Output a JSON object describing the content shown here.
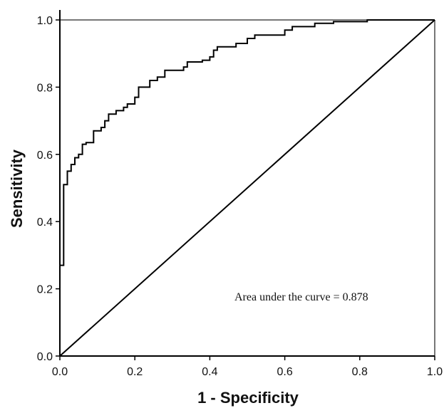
{
  "chart_data": {
    "type": "line",
    "title": "",
    "xlabel": "1 - Specificity",
    "ylabel": "Sensitivity",
    "xlim": [
      0,
      1
    ],
    "ylim": [
      0,
      1
    ],
    "x_ticks": [
      "0.0",
      "0.2",
      "0.4",
      "0.6",
      "0.8",
      "1.0"
    ],
    "y_ticks": [
      "0.0",
      "0.2",
      "0.4",
      "0.6",
      "0.8",
      "1.0"
    ],
    "grid": false,
    "legend": "none",
    "annotation": "Area under the curve = 0.878",
    "series": [
      {
        "style": "step",
        "color": "#000000",
        "points": [
          [
            0.0,
            0.0
          ],
          [
            0.0,
            0.27
          ],
          [
            0.01,
            0.27
          ],
          [
            0.01,
            0.51
          ],
          [
            0.02,
            0.51
          ],
          [
            0.02,
            0.55
          ],
          [
            0.03,
            0.55
          ],
          [
            0.03,
            0.57
          ],
          [
            0.04,
            0.57
          ],
          [
            0.04,
            0.59
          ],
          [
            0.05,
            0.59
          ],
          [
            0.05,
            0.6
          ],
          [
            0.06,
            0.6
          ],
          [
            0.06,
            0.63
          ],
          [
            0.07,
            0.63
          ],
          [
            0.07,
            0.635
          ],
          [
            0.09,
            0.635
          ],
          [
            0.09,
            0.67
          ],
          [
            0.11,
            0.67
          ],
          [
            0.11,
            0.68
          ],
          [
            0.12,
            0.68
          ],
          [
            0.12,
            0.7
          ],
          [
            0.13,
            0.7
          ],
          [
            0.13,
            0.72
          ],
          [
            0.15,
            0.72
          ],
          [
            0.15,
            0.73
          ],
          [
            0.17,
            0.73
          ],
          [
            0.17,
            0.74
          ],
          [
            0.18,
            0.74
          ],
          [
            0.18,
            0.75
          ],
          [
            0.2,
            0.75
          ],
          [
            0.2,
            0.77
          ],
          [
            0.21,
            0.77
          ],
          [
            0.21,
            0.8
          ],
          [
            0.24,
            0.8
          ],
          [
            0.24,
            0.82
          ],
          [
            0.26,
            0.82
          ],
          [
            0.26,
            0.83
          ],
          [
            0.28,
            0.83
          ],
          [
            0.28,
            0.85
          ],
          [
            0.33,
            0.85
          ],
          [
            0.33,
            0.86
          ],
          [
            0.34,
            0.86
          ],
          [
            0.34,
            0.875
          ],
          [
            0.38,
            0.875
          ],
          [
            0.38,
            0.88
          ],
          [
            0.4,
            0.88
          ],
          [
            0.4,
            0.89
          ],
          [
            0.41,
            0.89
          ],
          [
            0.41,
            0.91
          ],
          [
            0.42,
            0.91
          ],
          [
            0.42,
            0.92
          ],
          [
            0.47,
            0.92
          ],
          [
            0.47,
            0.93
          ],
          [
            0.5,
            0.93
          ],
          [
            0.5,
            0.945
          ],
          [
            0.52,
            0.945
          ],
          [
            0.52,
            0.955
          ],
          [
            0.6,
            0.955
          ],
          [
            0.6,
            0.97
          ],
          [
            0.62,
            0.97
          ],
          [
            0.62,
            0.98
          ],
          [
            0.68,
            0.98
          ],
          [
            0.68,
            0.99
          ],
          [
            0.73,
            0.99
          ],
          [
            0.73,
            0.995
          ],
          [
            0.82,
            0.995
          ],
          [
            0.82,
            1.0
          ],
          [
            1.0,
            1.0
          ]
        ]
      },
      {
        "style": "diagonal",
        "color": "#000000",
        "points": [
          [
            0,
            0
          ],
          [
            1,
            1
          ]
        ]
      }
    ]
  }
}
